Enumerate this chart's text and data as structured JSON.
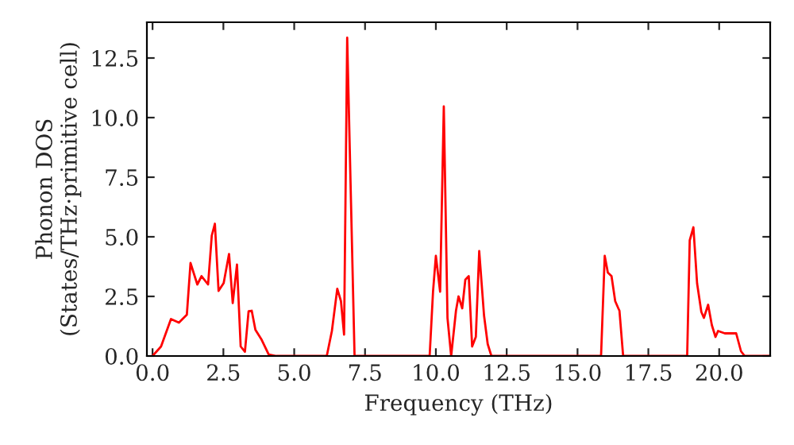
{
  "chart_data": {
    "type": "line",
    "xlabel": "Frequency (THz)",
    "ylabel": "Phonon DOS\n(States/THz·primitive cell)",
    "x": [
      0,
      0.3,
      0.65,
      0.93,
      1.21,
      1.34,
      1.58,
      1.73,
      1.96,
      2.09,
      2.2,
      2.33,
      2.51,
      2.7,
      2.83,
      2.98,
      3.11,
      3.26,
      3.39,
      3.5,
      3.63,
      3.85,
      4.1,
      4.37,
      6.15,
      6.33,
      6.52,
      6.65,
      6.76,
      6.87,
      7.13,
      9.78,
      9.9,
      10.0,
      10.15,
      10.28,
      10.41,
      10.54,
      10.71,
      10.8,
      10.93,
      11.04,
      11.16,
      11.28,
      11.41,
      11.53,
      11.7,
      11.83,
      11.96,
      15.83,
      15.96,
      16.07,
      16.2,
      16.33,
      16.44,
      16.48,
      16.61,
      18.87,
      18.96,
      19.09,
      19.22,
      19.37,
      19.46,
      19.61,
      19.74,
      19.87,
      19.96,
      20.2,
      20.6,
      20.77,
      20.9,
      21.8
    ],
    "series": [
      {
        "color": "#ff0000",
        "values": [
          0,
          0.4,
          1.55,
          1.4,
          1.73,
          3.9,
          3.0,
          3.35,
          3.0,
          5.05,
          5.55,
          2.73,
          3.06,
          4.28,
          2.22,
          3.84,
          0.4,
          0.18,
          1.88,
          1.9,
          1.1,
          0.68,
          0.06,
          0,
          0,
          1.05,
          2.82,
          2.3,
          0.9,
          13.35,
          0,
          0,
          2.7,
          4.2,
          2.7,
          10.47,
          1.6,
          0,
          1.9,
          2.5,
          2.0,
          3.2,
          3.35,
          0.4,
          0.8,
          4.4,
          1.7,
          0.5,
          0,
          0,
          4.2,
          3.5,
          3.35,
          2.3,
          2.0,
          1.9,
          0,
          0,
          4.85,
          5.4,
          3.05,
          1.85,
          1.6,
          2.15,
          1.3,
          0.8,
          1.05,
          0.95,
          0.95,
          0.2,
          0,
          0
        ]
      }
    ],
    "xlim": [
      -0.2,
      21.8
    ],
    "ylim": [
      0,
      14
    ],
    "xticks": [
      {
        "value": 0,
        "label": "0.0"
      },
      {
        "value": 2.5,
        "label": "2.5"
      },
      {
        "value": 5,
        "label": "5.0"
      },
      {
        "value": 7.5,
        "label": "7.5"
      },
      {
        "value": 10,
        "label": "10.0"
      },
      {
        "value": 12.5,
        "label": "12.5"
      },
      {
        "value": 15,
        "label": "15.0"
      },
      {
        "value": 17.5,
        "label": "17.5"
      },
      {
        "value": 20,
        "label": "20.0"
      }
    ],
    "yticks": [
      {
        "value": 0,
        "label": "0.0"
      },
      {
        "value": 2.5,
        "label": "2.5"
      },
      {
        "value": 5,
        "label": "5.0"
      },
      {
        "value": 7.5,
        "label": "7.5"
      },
      {
        "value": 10,
        "label": "10.0"
      },
      {
        "value": 12.5,
        "label": "12.5"
      }
    ],
    "grid": false,
    "legend": false
  }
}
